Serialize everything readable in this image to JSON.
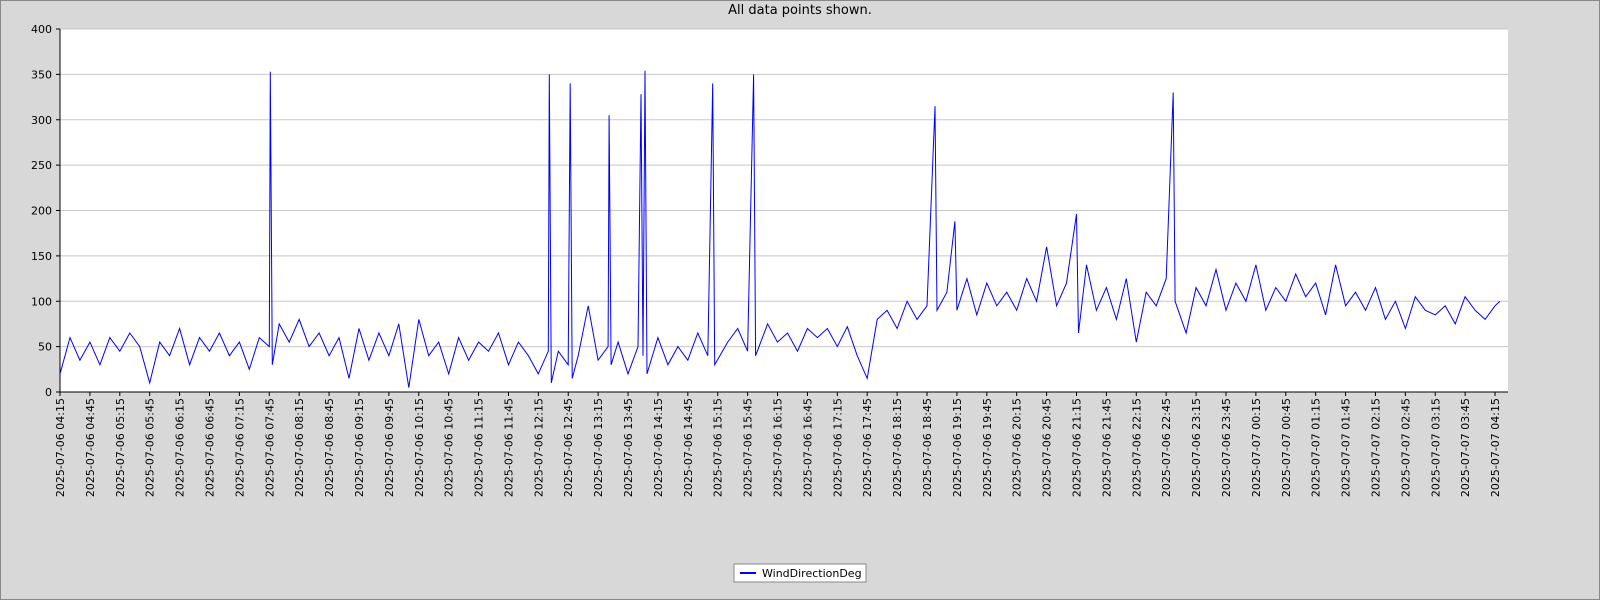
{
  "chart_data": {
    "type": "line",
    "title": "All data points shown.",
    "x": [
      "2025-07-06 04:15",
      "2025-07-06 04:25",
      "2025-07-06 04:35",
      "2025-07-06 04:45",
      "2025-07-06 04:55",
      "2025-07-06 05:05",
      "2025-07-06 05:15",
      "2025-07-06 05:25",
      "2025-07-06 05:35",
      "2025-07-06 05:45",
      "2025-07-06 05:55",
      "2025-07-06 06:05",
      "2025-07-06 06:15",
      "2025-07-06 06:25",
      "2025-07-06 06:35",
      "2025-07-06 06:45",
      "2025-07-06 06:55",
      "2025-07-06 07:05",
      "2025-07-06 07:15",
      "2025-07-06 07:25",
      "2025-07-06 07:35",
      "2025-07-06 07:45",
      "2025-07-06 07:46",
      "2025-07-06 07:48",
      "2025-07-06 07:55",
      "2025-07-06 08:05",
      "2025-07-06 08:15",
      "2025-07-06 08:25",
      "2025-07-06 08:35",
      "2025-07-06 08:45",
      "2025-07-06 08:55",
      "2025-07-06 09:05",
      "2025-07-06 09:15",
      "2025-07-06 09:25",
      "2025-07-06 09:35",
      "2025-07-06 09:45",
      "2025-07-06 09:55",
      "2025-07-06 10:05",
      "2025-07-06 10:15",
      "2025-07-06 10:25",
      "2025-07-06 10:35",
      "2025-07-06 10:45",
      "2025-07-06 10:55",
      "2025-07-06 11:05",
      "2025-07-06 11:15",
      "2025-07-06 11:25",
      "2025-07-06 11:35",
      "2025-07-06 11:45",
      "2025-07-06 11:55",
      "2025-07-06 12:05",
      "2025-07-06 12:15",
      "2025-07-06 12:25",
      "2025-07-06 12:26",
      "2025-07-06 12:28",
      "2025-07-06 12:35",
      "2025-07-06 12:45",
      "2025-07-06 12:47",
      "2025-07-06 12:49",
      "2025-07-06 12:55",
      "2025-07-06 13:05",
      "2025-07-06 13:15",
      "2025-07-06 13:25",
      "2025-07-06 13:26",
      "2025-07-06 13:28",
      "2025-07-06 13:35",
      "2025-07-06 13:45",
      "2025-07-06 13:55",
      "2025-07-06 13:58",
      "2025-07-06 14:00",
      "2025-07-06 14:02",
      "2025-07-06 14:04",
      "2025-07-06 14:15",
      "2025-07-06 14:25",
      "2025-07-06 14:35",
      "2025-07-06 14:45",
      "2025-07-06 14:55",
      "2025-07-06 15:05",
      "2025-07-06 15:10",
      "2025-07-06 15:12",
      "2025-07-06 15:25",
      "2025-07-06 15:35",
      "2025-07-06 15:45",
      "2025-07-06 15:51",
      "2025-07-06 15:53",
      "2025-07-06 16:05",
      "2025-07-06 16:15",
      "2025-07-06 16:25",
      "2025-07-06 16:35",
      "2025-07-06 16:45",
      "2025-07-06 16:55",
      "2025-07-06 17:05",
      "2025-07-06 17:15",
      "2025-07-06 17:25",
      "2025-07-06 17:35",
      "2025-07-06 17:45",
      "2025-07-06 17:55",
      "2025-07-06 18:05",
      "2025-07-06 18:15",
      "2025-07-06 18:25",
      "2025-07-06 18:35",
      "2025-07-06 18:45",
      "2025-07-06 18:53",
      "2025-07-06 18:55",
      "2025-07-06 19:05",
      "2025-07-06 19:13",
      "2025-07-06 19:15",
      "2025-07-06 19:25",
      "2025-07-06 19:35",
      "2025-07-06 19:45",
      "2025-07-06 19:55",
      "2025-07-06 20:05",
      "2025-07-06 20:15",
      "2025-07-06 20:25",
      "2025-07-06 20:35",
      "2025-07-06 20:45",
      "2025-07-06 20:55",
      "2025-07-06 21:05",
      "2025-07-06 21:15",
      "2025-07-06 21:17",
      "2025-07-06 21:25",
      "2025-07-06 21:35",
      "2025-07-06 21:45",
      "2025-07-06 21:55",
      "2025-07-06 22:05",
      "2025-07-06 22:15",
      "2025-07-06 22:25",
      "2025-07-06 22:35",
      "2025-07-06 22:45",
      "2025-07-06 22:52",
      "2025-07-06 22:54",
      "2025-07-06 23:05",
      "2025-07-06 23:15",
      "2025-07-06 23:25",
      "2025-07-06 23:35",
      "2025-07-06 23:45",
      "2025-07-06 23:55",
      "2025-07-07 00:05",
      "2025-07-07 00:15",
      "2025-07-07 00:25",
      "2025-07-07 00:35",
      "2025-07-07 00:45",
      "2025-07-07 00:55",
      "2025-07-07 01:05",
      "2025-07-07 01:15",
      "2025-07-07 01:25",
      "2025-07-07 01:35",
      "2025-07-07 01:45",
      "2025-07-07 01:55",
      "2025-07-07 02:05",
      "2025-07-07 02:15",
      "2025-07-07 02:25",
      "2025-07-07 02:35",
      "2025-07-07 02:45",
      "2025-07-07 02:55",
      "2025-07-07 03:05",
      "2025-07-07 03:15",
      "2025-07-07 03:25",
      "2025-07-07 03:35",
      "2025-07-07 03:45",
      "2025-07-07 03:55",
      "2025-07-07 04:05",
      "2025-07-07 04:15",
      "2025-07-07 04:20"
    ],
    "series": [
      {
        "name": "WindDirectionDeg",
        "color": "#0000ff",
        "values": [
          20,
          60,
          35,
          55,
          30,
          60,
          45,
          65,
          50,
          10,
          55,
          40,
          70,
          30,
          60,
          45,
          65,
          40,
          55,
          25,
          60,
          50,
          353,
          30,
          75,
          55,
          80,
          50,
          65,
          40,
          60,
          15,
          70,
          35,
          65,
          40,
          75,
          5,
          80,
          40,
          55,
          20,
          60,
          35,
          55,
          45,
          65,
          30,
          55,
          40,
          20,
          45,
          350,
          10,
          45,
          30,
          340,
          15,
          40,
          95,
          35,
          50,
          305,
          30,
          55,
          20,
          50,
          328,
          40,
          354,
          20,
          60,
          30,
          50,
          35,
          65,
          40,
          340,
          30,
          55,
          70,
          45,
          350,
          40,
          75,
          55,
          65,
          45,
          70,
          60,
          70,
          50,
          72,
          40,
          15,
          80,
          90,
          70,
          100,
          80,
          95,
          315,
          90,
          110,
          188,
          90,
          125,
          85,
          120,
          95,
          110,
          90,
          125,
          100,
          160,
          95,
          120,
          196,
          65,
          140,
          90,
          115,
          80,
          125,
          55,
          110,
          95,
          125,
          330,
          100,
          65,
          115,
          95,
          135,
          90,
          120,
          100,
          140,
          90,
          115,
          100,
          130,
          105,
          120,
          85,
          140,
          95,
          110,
          90,
          115,
          80,
          100,
          70,
          105,
          90,
          85,
          95,
          75,
          105,
          90,
          80,
          95,
          100
        ]
      }
    ],
    "xlim": [
      "2025-07-06 04:15",
      "2025-07-07 04:28"
    ],
    "xticks": [
      "2025-07-06 04:15",
      "2025-07-06 04:45",
      "2025-07-06 05:15",
      "2025-07-06 05:45",
      "2025-07-06 06:15",
      "2025-07-06 06:45",
      "2025-07-06 07:15",
      "2025-07-06 07:45",
      "2025-07-06 08:15",
      "2025-07-06 08:45",
      "2025-07-06 09:15",
      "2025-07-06 09:45",
      "2025-07-06 10:15",
      "2025-07-06 10:45",
      "2025-07-06 11:15",
      "2025-07-06 11:45",
      "2025-07-06 12:15",
      "2025-07-06 12:45",
      "2025-07-06 13:15",
      "2025-07-06 13:45",
      "2025-07-06 14:15",
      "2025-07-06 14:45",
      "2025-07-06 15:15",
      "2025-07-06 15:45",
      "2025-07-06 16:15",
      "2025-07-06 16:45",
      "2025-07-06 17:15",
      "2025-07-06 17:45",
      "2025-07-06 18:15",
      "2025-07-06 18:45",
      "2025-07-06 19:15",
      "2025-07-06 19:45",
      "2025-07-06 20:15",
      "2025-07-06 20:45",
      "2025-07-06 21:15",
      "2025-07-06 21:45",
      "2025-07-06 22:15",
      "2025-07-06 22:45",
      "2025-07-06 23:15",
      "2025-07-06 23:45",
      "2025-07-07 00:15",
      "2025-07-07 00:45",
      "2025-07-07 01:15",
      "2025-07-07 01:45",
      "2025-07-07 02:15",
      "2025-07-07 02:45",
      "2025-07-07 03:15",
      "2025-07-07 03:45",
      "2025-07-07 04:15"
    ],
    "ylim": [
      0,
      400
    ],
    "yticks": [
      0,
      50,
      100,
      150,
      200,
      250,
      300,
      350,
      400
    ],
    "grid": true,
    "legend": "bottom"
  }
}
